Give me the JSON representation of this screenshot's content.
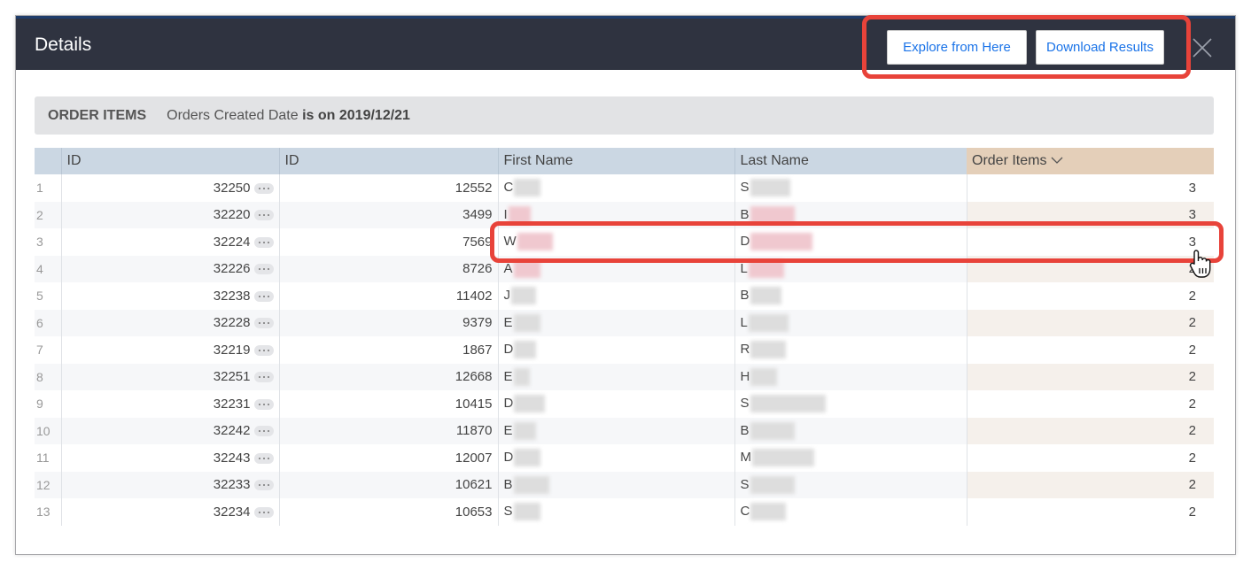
{
  "header": {
    "title": "Details",
    "explore_label": "Explore from Here",
    "download_label": "Download Results",
    "close_icon": "close-icon"
  },
  "filter": {
    "label": "ORDER ITEMS",
    "field": "Orders Created Date",
    "op": " is on ",
    "value": "2019/12/21"
  },
  "table": {
    "columns": [
      "",
      "ID",
      "ID",
      "First Name",
      "Last Name",
      "Order Items"
    ],
    "sort_icon": "chevron-down-icon",
    "rows": [
      {
        "n": "1",
        "id": "32250",
        "oid": "12552",
        "first": "C",
        "last": "S",
        "items": "3"
      },
      {
        "n": "2",
        "id": "32220",
        "oid": "3499",
        "first": "I",
        "last": "B",
        "items": "3"
      },
      {
        "n": "3",
        "id": "32224",
        "oid": "7569",
        "first": "W",
        "last": "D",
        "items": "3"
      },
      {
        "n": "4",
        "id": "32226",
        "oid": "8726",
        "first": "A",
        "last": "L",
        "items": "2"
      },
      {
        "n": "5",
        "id": "32238",
        "oid": "11402",
        "first": "J",
        "last": "B",
        "items": "2"
      },
      {
        "n": "6",
        "id": "32228",
        "oid": "9379",
        "first": "E",
        "last": "L",
        "items": "2"
      },
      {
        "n": "7",
        "id": "32219",
        "oid": "1867",
        "first": "D",
        "last": "R",
        "items": "2"
      },
      {
        "n": "8",
        "id": "32251",
        "oid": "12668",
        "first": "E",
        "last": "H",
        "items": "2"
      },
      {
        "n": "9",
        "id": "32231",
        "oid": "10415",
        "first": "D",
        "last": "S",
        "items": "2"
      },
      {
        "n": "10",
        "id": "32242",
        "oid": "11870",
        "first": "E",
        "last": "B",
        "items": "2"
      },
      {
        "n": "11",
        "id": "32243",
        "oid": "12007",
        "first": "D",
        "last": "M",
        "items": "2"
      },
      {
        "n": "12",
        "id": "32233",
        "oid": "10621",
        "first": "B",
        "last": "S",
        "items": "2"
      },
      {
        "n": "13",
        "id": "32234",
        "oid": "10653",
        "first": "S",
        "last": "C",
        "items": "2"
      }
    ]
  },
  "colors": {
    "header_bg": "#2f3340",
    "accent": "#1a73e8",
    "annotation": "#e8433a",
    "measure_header": "#e4cfb9",
    "dimension_header": "#cbd7e3"
  }
}
